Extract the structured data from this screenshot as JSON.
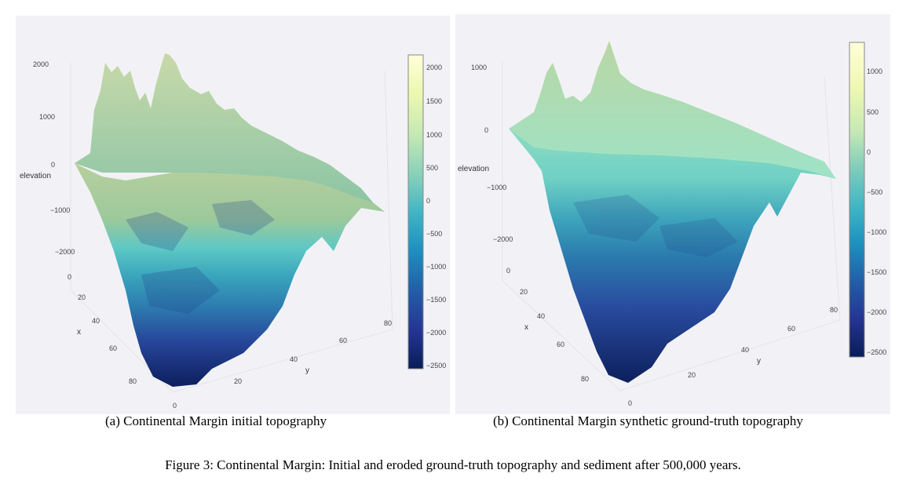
{
  "panel_a": {
    "caption": "(a)  Continental Margin initial topography",
    "z_axis_label": "elevation",
    "z_ticks": [
      "2000",
      "1000",
      "0",
      "−1000",
      "−2000"
    ],
    "x_axis_label": "x",
    "x_ticks": [
      "0",
      "20",
      "40",
      "60",
      "80"
    ],
    "y_axis_label": "y",
    "y_ticks": [
      "0",
      "20",
      "40",
      "60",
      "80"
    ],
    "colorbar_ticks": [
      "2000",
      "1500",
      "1000",
      "500",
      "0",
      "−500",
      "−1000",
      "−1500",
      "−2000",
      "−2500"
    ]
  },
  "panel_b": {
    "caption": "(b)  Continental Margin synthetic ground-truth topography",
    "z_axis_label": "elevation",
    "z_ticks": [
      "1000",
      "0",
      "−1000",
      "−2000"
    ],
    "x_axis_label": "x",
    "x_ticks": [
      "0",
      "20",
      "40",
      "60",
      "80"
    ],
    "y_axis_label": "y",
    "y_ticks": [
      "0",
      "20",
      "40",
      "60",
      "80"
    ],
    "colorbar_ticks": [
      "1000",
      "500",
      "0",
      "−500",
      "−1000",
      "−1500",
      "−2000",
      "−2500"
    ]
  },
  "figure_caption": "Figure 3: Continental Margin: Initial and eroded ground-truth topography and sediment after 500,000 years.",
  "colorscale": [
    "#ffffd9",
    "#edf8b1",
    "#c7e9b4",
    "#7fcdbb",
    "#41b6c4",
    "#1d91c0",
    "#225ea8",
    "#253494",
    "#081d58"
  ]
}
